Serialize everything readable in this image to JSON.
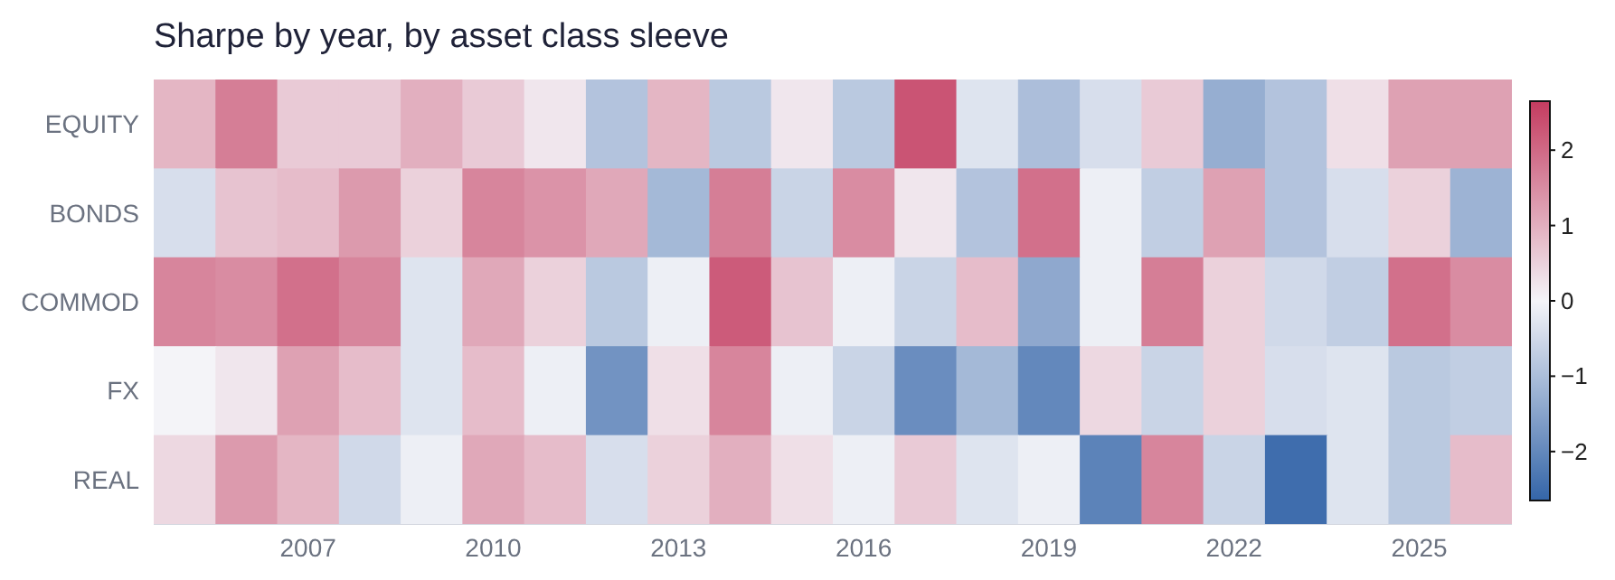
{
  "chart_data": {
    "type": "heatmap",
    "title": "Sharpe by year, by asset class sleeve",
    "categories": [
      null,
      null,
      "2007",
      null,
      null,
      "2010",
      null,
      null,
      "2013",
      null,
      null,
      "2016",
      null,
      null,
      "2019",
      null,
      null,
      "2022",
      null,
      null,
      "2025",
      null
    ],
    "y_categories": [
      "EQUITY",
      "BONDS",
      "COMMOD",
      "FX",
      "REAL"
    ],
    "cells": [
      [
        0.9,
        1.7,
        0.6,
        0.6,
        1.0,
        0.6,
        0.2,
        -0.9,
        0.9,
        -0.8,
        0.2,
        -0.8,
        2.3,
        -0.3,
        -1.0,
        -0.4,
        0.6,
        -1.3,
        -0.9,
        0.3,
        1.2,
        1.2
      ],
      [
        -0.4,
        0.7,
        0.8,
        1.3,
        0.5,
        1.6,
        1.4,
        1.1,
        -1.1,
        1.7,
        -0.6,
        1.5,
        0.2,
        -0.9,
        1.9,
        -0.1,
        -0.7,
        1.2,
        -0.9,
        -0.4,
        0.5,
        -1.2
      ],
      [
        1.6,
        1.5,
        1.9,
        1.6,
        -0.3,
        1.1,
        0.5,
        -0.8,
        -0.1,
        2.2,
        0.7,
        -0.1,
        -0.6,
        0.8,
        -1.4,
        -0.1,
        1.7,
        0.5,
        -0.5,
        -0.7,
        1.9,
        1.5
      ],
      [
        0.0,
        0.2,
        1.2,
        0.8,
        -0.3,
        0.8,
        -0.1,
        -1.8,
        0.3,
        1.6,
        -0.1,
        -0.6,
        -1.9,
        -1.1,
        -2.0,
        0.4,
        -0.6,
        0.5,
        -0.4,
        -0.3,
        -0.8,
        -0.7
      ],
      [
        0.4,
        1.3,
        0.9,
        -0.5,
        -0.1,
        1.1,
        0.8,
        -0.4,
        0.5,
        1.0,
        0.3,
        -0.1,
        0.6,
        -0.3,
        -0.1,
        -2.1,
        1.6,
        -0.6,
        -2.5,
        -0.3,
        -0.8,
        0.8
      ]
    ],
    "clim": [
      -2.65,
      2.65
    ],
    "cticks": [
      -2,
      -1,
      0,
      1,
      2
    ]
  }
}
